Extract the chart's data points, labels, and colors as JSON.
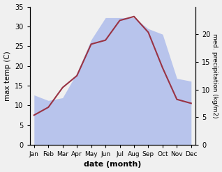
{
  "months": [
    "Jan",
    "Feb",
    "Mar",
    "Apr",
    "May",
    "Jun",
    "Jul",
    "Aug",
    "Sep",
    "Oct",
    "Nov",
    "Dec"
  ],
  "temp": [
    7.5,
    9.5,
    14.5,
    17.5,
    25.5,
    26.5,
    31.5,
    32.5,
    28.5,
    19.5,
    11.5,
    10.5
  ],
  "precip": [
    9,
    8,
    8.5,
    13,
    19,
    23,
    23,
    23,
    21,
    20,
    12,
    11.5
  ],
  "temp_color": "#993344",
  "precip_fill_color": "#b8c4ec",
  "temp_ylim": [
    0,
    35
  ],
  "precip_ylim": [
    0,
    25
  ],
  "right_yticks": [
    0,
    5,
    10,
    15,
    20
  ],
  "xlabel": "date (month)",
  "ylabel_left": "max temp (C)",
  "ylabel_right": "med. precipitation (kg/m2)",
  "fig_width": 3.18,
  "fig_height": 2.47,
  "dpi": 100,
  "bg_color": "#f0f0f0"
}
